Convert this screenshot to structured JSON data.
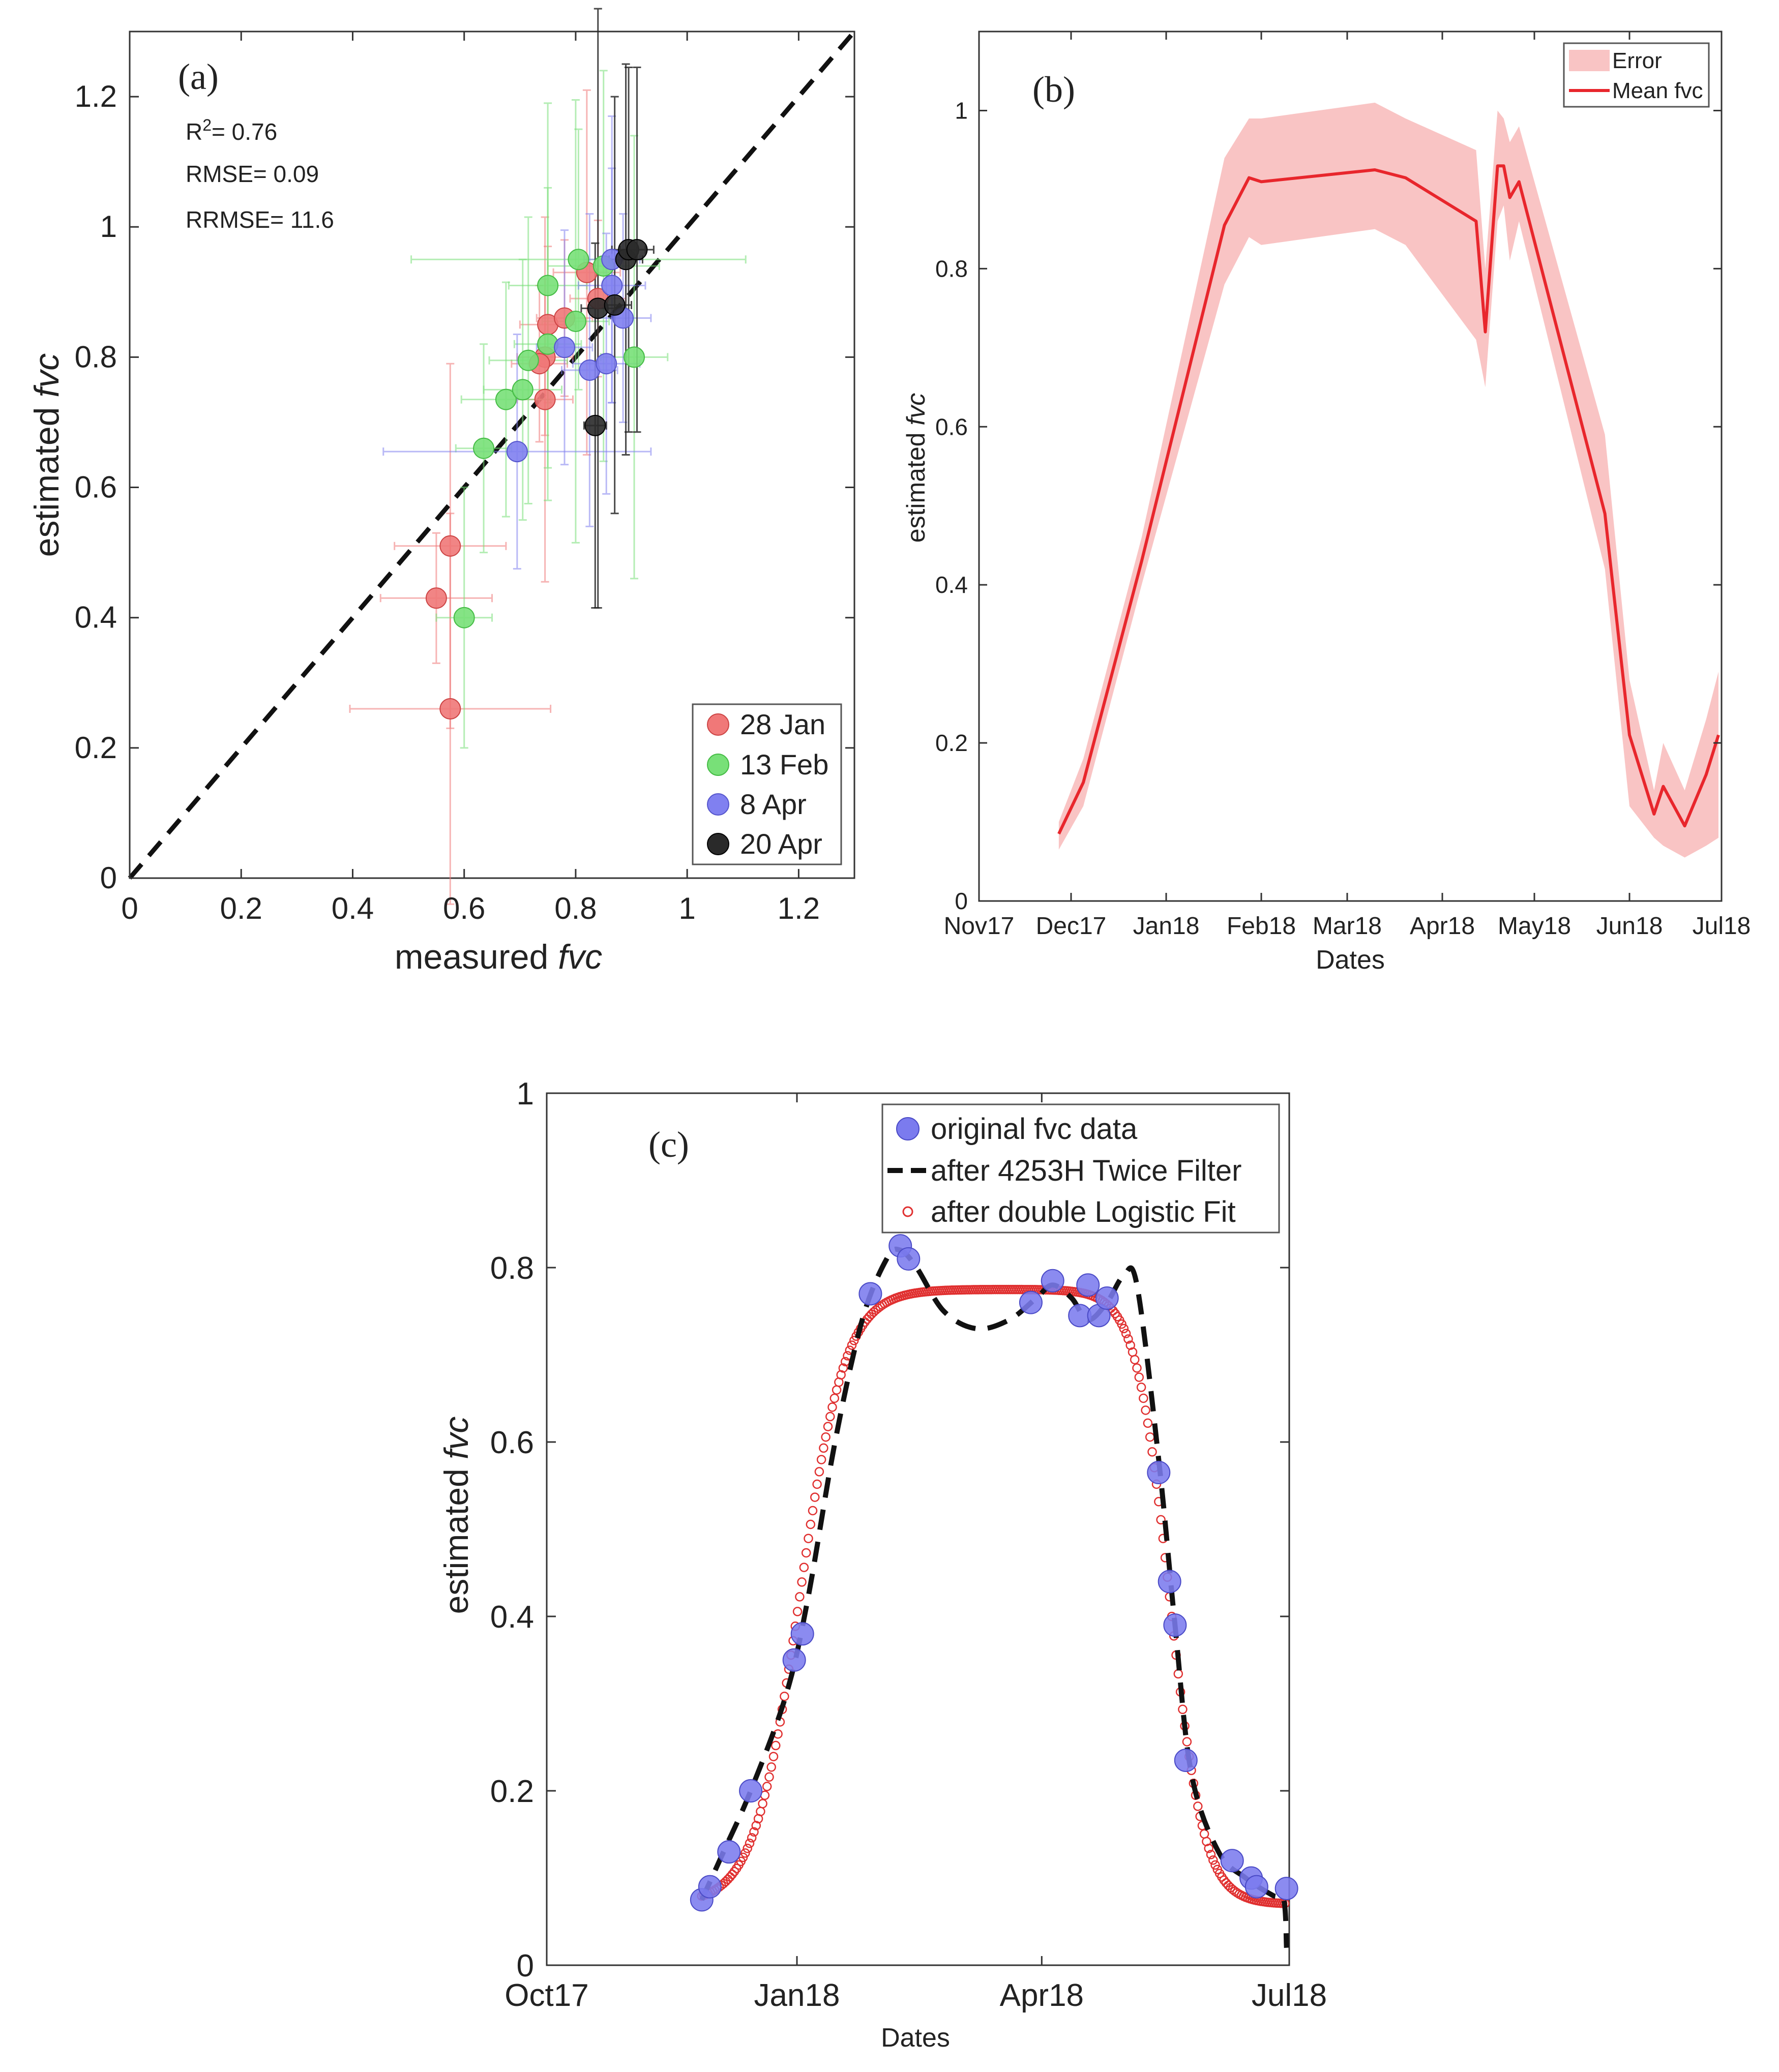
{
  "chart_data": [
    {
      "panel": "(a)",
      "type": "scatter",
      "xlabel": "measured",
      "xlabel_italic": "fvc",
      "ylabel": "estimated",
      "ylabel_italic": "fvc",
      "xlim": [
        0,
        1.3
      ],
      "ylim": [
        0,
        1.3
      ],
      "xticks": [
        "0",
        "0.2",
        "0.4",
        "0.6",
        "0.8",
        "1",
        "1.2"
      ],
      "yticks": [
        "0",
        "0.2",
        "0.4",
        "0.6",
        "0.8",
        "1",
        "1.2"
      ],
      "stats": {
        "r2_label": "R",
        "r2_sup": "2",
        "r2": "= 0.76",
        "rmse": "RMSE= 0.09",
        "rrmse": "RRMSE= 11.6"
      },
      "reference_line": "1:1",
      "legend_position": "bottom-right",
      "colors": {
        "28 Jan": "#f07878",
        "13 Feb": "#78e078",
        "8 Apr": "#8080f0",
        "20 Apr": "#2a2a2a"
      },
      "series": [
        {
          "name": "28 Jan",
          "points": [
            {
              "x": 0.575,
              "y": 0.26,
              "xe": 0.18,
              "ye": 0.3
            },
            {
              "x": 0.55,
              "y": 0.43,
              "xe": 0.1,
              "ye": 0.1
            },
            {
              "x": 0.575,
              "y": 0.51,
              "xe": 0.1,
              "ye": 0.28
            },
            {
              "x": 0.745,
              "y": 0.735,
              "xe": 0.05,
              "ye": 0.28
            },
            {
              "x": 0.745,
              "y": 0.8,
              "xe": 0.05,
              "ye": 0.12
            },
            {
              "x": 0.735,
              "y": 0.79,
              "xe": 0.05,
              "ye": 0.12
            },
            {
              "x": 0.75,
              "y": 0.85,
              "xe": 0.05,
              "ye": 0.12
            },
            {
              "x": 0.78,
              "y": 0.86,
              "xe": 0.05,
              "ye": 0.12
            },
            {
              "x": 0.82,
              "y": 0.93,
              "xe": 0.06,
              "ye": 0.28
            },
            {
              "x": 0.84,
              "y": 0.89,
              "xe": 0.05,
              "ye": 0.12
            }
          ]
        },
        {
          "name": "13 Feb",
          "points": [
            {
              "x": 0.6,
              "y": 0.4,
              "xe": 0.05,
              "ye": 0.2
            },
            {
              "x": 0.635,
              "y": 0.66,
              "xe": 0.05,
              "ye": 0.16
            },
            {
              "x": 0.675,
              "y": 0.735,
              "xe": 0.08,
              "ye": 0.18
            },
            {
              "x": 0.705,
              "y": 0.75,
              "xe": 0.07,
              "ye": 0.2
            },
            {
              "x": 0.715,
              "y": 0.795,
              "xe": 0.07,
              "ye": 0.22
            },
            {
              "x": 0.75,
              "y": 0.82,
              "xe": 0.06,
              "ye": 0.24
            },
            {
              "x": 0.75,
              "y": 0.91,
              "xe": 0.07,
              "ye": 0.28
            },
            {
              "x": 0.8,
              "y": 0.855,
              "xe": 0.06,
              "ye": 0.34
            },
            {
              "x": 0.805,
              "y": 0.95,
              "xe": 0.3,
              "ye": 0.2
            },
            {
              "x": 0.85,
              "y": 0.94,
              "xe": 0.1,
              "ye": 0.3
            },
            {
              "x": 0.905,
              "y": 0.8,
              "xe": 0.06,
              "ye": 0.34
            }
          ]
        },
        {
          "name": "8 Apr",
          "points": [
            {
              "x": 0.695,
              "y": 0.655,
              "xe": 0.24,
              "ye": 0.18
            },
            {
              "x": 0.78,
              "y": 0.815,
              "xe": 0.05,
              "ye": 0.18
            },
            {
              "x": 0.825,
              "y": 0.78,
              "xe": 0.05,
              "ye": 0.24
            },
            {
              "x": 0.855,
              "y": 0.79,
              "xe": 0.06,
              "ye": 0.2
            },
            {
              "x": 0.865,
              "y": 0.95,
              "xe": 0.05,
              "ye": 0.22
            },
            {
              "x": 0.885,
              "y": 0.86,
              "xe": 0.05,
              "ye": 0.16
            },
            {
              "x": 0.865,
              "y": 0.91,
              "xe": 0.06,
              "ye": 0.18
            }
          ]
        },
        {
          "name": "20 Apr",
          "points": [
            {
              "x": 0.835,
              "y": 0.695,
              "xe": 0.02,
              "ye": 0.28
            },
            {
              "x": 0.84,
              "y": 0.875,
              "xe": 0.03,
              "ye": 0.46
            },
            {
              "x": 0.87,
              "y": 0.88,
              "xe": 0.03,
              "ye": 0.32
            },
            {
              "x": 0.89,
              "y": 0.95,
              "xe": 0.03,
              "ye": 0.3
            },
            {
              "x": 0.895,
              "y": 0.965,
              "xe": 0.03,
              "ye": 0.28
            },
            {
              "x": 0.91,
              "y": 0.965,
              "xe": 0.03,
              "ye": 0.28
            }
          ]
        }
      ]
    },
    {
      "panel": "(b)",
      "type": "area",
      "xlabel": "Dates",
      "ylabel": "estimated",
      "ylabel_italic": "fvc",
      "xlim": [
        "2017-11-01",
        "2018-07-01"
      ],
      "ylim": [
        0,
        1.1
      ],
      "xticks": [
        "Nov17",
        "Dec17",
        "Jan18",
        "Feb18",
        "Mar18",
        "Apr18",
        "May18",
        "Jun18",
        "Jul18"
      ],
      "yticks": [
        "0",
        "0.2",
        "0.4",
        "0.6",
        "0.8",
        "1"
      ],
      "legend_position": "top-right",
      "colors": {
        "band": "#f9c4c4",
        "line": "#e8262c"
      },
      "series": [
        {
          "name": "Error",
          "points": [
            {
              "x": "2017-11-27",
              "lo": 0.065,
              "hi": 0.1
            },
            {
              "x": "2017-12-05",
              "lo": 0.12,
              "hi": 0.18
            },
            {
              "x": "2017-12-24",
              "lo": 0.4,
              "hi": 0.46
            },
            {
              "x": "2018-01-20",
              "lo": 0.78,
              "hi": 0.94
            },
            {
              "x": "2018-01-28",
              "lo": 0.84,
              "hi": 0.99
            },
            {
              "x": "2018-02-01",
              "lo": 0.83,
              "hi": 0.99
            },
            {
              "x": "2018-03-10",
              "lo": 0.85,
              "hi": 1.01
            },
            {
              "x": "2018-03-20",
              "lo": 0.83,
              "hi": 0.99
            },
            {
              "x": "2018-04-12",
              "lo": 0.71,
              "hi": 0.95
            },
            {
              "x": "2018-04-15",
              "lo": 0.65,
              "hi": 0.8
            },
            {
              "x": "2018-04-19",
              "lo": 0.86,
              "hi": 1.0
            },
            {
              "x": "2018-04-21",
              "lo": 0.88,
              "hi": 0.99
            },
            {
              "x": "2018-04-23",
              "lo": 0.81,
              "hi": 0.96
            },
            {
              "x": "2018-04-26",
              "lo": 0.86,
              "hi": 0.98
            },
            {
              "x": "2018-05-24",
              "lo": 0.42,
              "hi": 0.59
            },
            {
              "x": "2018-06-01",
              "lo": 0.12,
              "hi": 0.28
            },
            {
              "x": "2018-06-09",
              "lo": 0.08,
              "hi": 0.14
            },
            {
              "x": "2018-06-12",
              "lo": 0.07,
              "hi": 0.2
            },
            {
              "x": "2018-06-19",
              "lo": 0.055,
              "hi": 0.14
            },
            {
              "x": "2018-06-26",
              "lo": 0.07,
              "hi": 0.23
            },
            {
              "x": "2018-06-30",
              "lo": 0.08,
              "hi": 0.29
            }
          ]
        },
        {
          "name": "Mean fvc",
          "points": [
            {
              "x": "2017-11-27",
              "y": 0.085
            },
            {
              "x": "2017-12-05",
              "y": 0.15
            },
            {
              "x": "2017-12-24",
              "y": 0.43
            },
            {
              "x": "2018-01-20",
              "y": 0.855
            },
            {
              "x": "2018-01-28",
              "y": 0.915
            },
            {
              "x": "2018-02-01",
              "y": 0.91
            },
            {
              "x": "2018-03-10",
              "y": 0.925
            },
            {
              "x": "2018-03-20",
              "y": 0.915
            },
            {
              "x": "2018-04-12",
              "y": 0.86
            },
            {
              "x": "2018-04-15",
              "y": 0.72
            },
            {
              "x": "2018-04-19",
              "y": 0.93
            },
            {
              "x": "2018-04-21",
              "y": 0.93
            },
            {
              "x": "2018-04-23",
              "y": 0.89
            },
            {
              "x": "2018-04-26",
              "y": 0.91
            },
            {
              "x": "2018-05-24",
              "y": 0.49
            },
            {
              "x": "2018-06-01",
              "y": 0.21
            },
            {
              "x": "2018-06-09",
              "y": 0.11
            },
            {
              "x": "2018-06-12",
              "y": 0.145
            },
            {
              "x": "2018-06-19",
              "y": 0.095
            },
            {
              "x": "2018-06-26",
              "y": 0.16
            },
            {
              "x": "2018-06-30",
              "y": 0.21
            }
          ]
        }
      ]
    },
    {
      "panel": "(c)",
      "type": "line",
      "xlabel": "Dates",
      "ylabel": "estimated",
      "ylabel_italic": "fvc",
      "xlim": [
        "2017-10-01",
        "2018-07-01"
      ],
      "ylim": [
        0,
        1
      ],
      "xticks": [
        "Oct17",
        "Jan18",
        "Apr18",
        "Jul18"
      ],
      "yticks": [
        "0",
        "0.2",
        "0.4",
        "0.6",
        "0.8",
        "1"
      ],
      "legend_position": "top-right",
      "colors": {
        "original": "#7b7bee",
        "filter": "#111111",
        "fit": "#e03030"
      },
      "series": [
        {
          "name": "original fvc data",
          "points": [
            {
              "x": "2017-11-27",
              "y": 0.075
            },
            {
              "x": "2017-11-30",
              "y": 0.09
            },
            {
              "x": "2017-12-07",
              "y": 0.13
            },
            {
              "x": "2017-12-15",
              "y": 0.2
            },
            {
              "x": "2017-12-31",
              "y": 0.35
            },
            {
              "x": "2018-01-03",
              "y": 0.38
            },
            {
              "x": "2018-01-28",
              "y": 0.77
            },
            {
              "x": "2018-02-08",
              "y": 0.825
            },
            {
              "x": "2018-02-11",
              "y": 0.81
            },
            {
              "x": "2018-03-28",
              "y": 0.76
            },
            {
              "x": "2018-04-05",
              "y": 0.785
            },
            {
              "x": "2018-04-15",
              "y": 0.745
            },
            {
              "x": "2018-04-18",
              "y": 0.78
            },
            {
              "x": "2018-04-22",
              "y": 0.745
            },
            {
              "x": "2018-04-25",
              "y": 0.765
            },
            {
              "x": "2018-05-14",
              "y": 0.565
            },
            {
              "x": "2018-05-18",
              "y": 0.44
            },
            {
              "x": "2018-05-20",
              "y": 0.39
            },
            {
              "x": "2018-05-24",
              "y": 0.235
            },
            {
              "x": "2018-06-10",
              "y": 0.12
            },
            {
              "x": "2018-06-17",
              "y": 0.1
            },
            {
              "x": "2018-06-19",
              "y": 0.09
            },
            {
              "x": "2018-06-30",
              "y": 0.088
            }
          ]
        },
        {
          "name": "after 4253H Twice Filter",
          "points": [
            {
              "x": "2017-11-27",
              "y": 0.075
            },
            {
              "x": "2017-12-05",
              "y": 0.13
            },
            {
              "x": "2017-12-15",
              "y": 0.2
            },
            {
              "x": "2017-12-28",
              "y": 0.31
            },
            {
              "x": "2018-01-05",
              "y": 0.42
            },
            {
              "x": "2018-01-15",
              "y": 0.6
            },
            {
              "x": "2018-01-25",
              "y": 0.74
            },
            {
              "x": "2018-02-03",
              "y": 0.81
            },
            {
              "x": "2018-02-08",
              "y": 0.82
            },
            {
              "x": "2018-02-14",
              "y": 0.8
            },
            {
              "x": "2018-02-24",
              "y": 0.75
            },
            {
              "x": "2018-03-08",
              "y": 0.73
            },
            {
              "x": "2018-03-20",
              "y": 0.74
            },
            {
              "x": "2018-03-30",
              "y": 0.765
            },
            {
              "x": "2018-04-05",
              "y": 0.78
            },
            {
              "x": "2018-04-12",
              "y": 0.765
            },
            {
              "x": "2018-04-18",
              "y": 0.74
            },
            {
              "x": "2018-04-25",
              "y": 0.76
            },
            {
              "x": "2018-05-01",
              "y": 0.79
            },
            {
              "x": "2018-05-06",
              "y": 0.78
            },
            {
              "x": "2018-05-14",
              "y": 0.58
            },
            {
              "x": "2018-05-20",
              "y": 0.39
            },
            {
              "x": "2018-05-26",
              "y": 0.22
            },
            {
              "x": "2018-06-05",
              "y": 0.13
            },
            {
              "x": "2018-06-15",
              "y": 0.1
            },
            {
              "x": "2018-06-25",
              "y": 0.08
            },
            {
              "x": "2018-06-29",
              "y": 0.075
            },
            {
              "x": "2018-06-30",
              "y": 0.02
            }
          ]
        },
        {
          "name": "after double Logistic Fit",
          "params": {
            "base": 0.07,
            "amp": 0.705,
            "rise_mid": "2018-01-02",
            "rise_k": 0.12,
            "fall_mid": "2018-05-18",
            "fall_k": 0.16
          },
          "range": [
            "2017-11-27",
            "2018-06-30"
          ]
        }
      ]
    }
  ]
}
